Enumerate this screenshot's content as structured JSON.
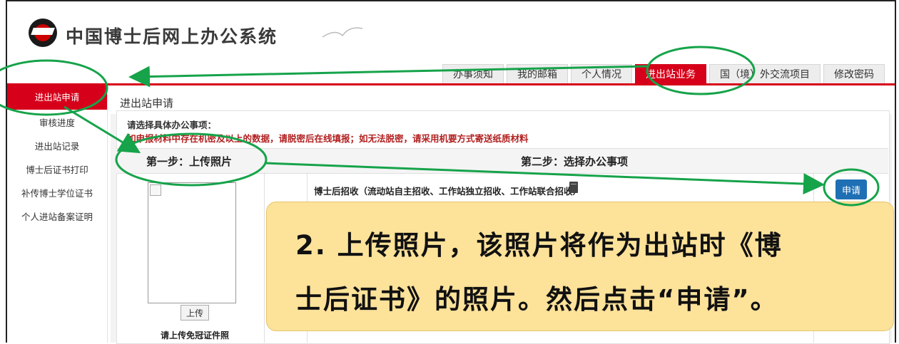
{
  "header": {
    "site_title": "中国博士后网上办公系统"
  },
  "tabs": [
    {
      "label": "办事须知"
    },
    {
      "label": "我的邮箱"
    },
    {
      "label": "个人情况"
    },
    {
      "label": "进出站业务",
      "active": true
    },
    {
      "label": "国（境）外交流项目"
    },
    {
      "label": "修改密码"
    }
  ],
  "sidebar": {
    "items": [
      {
        "label": "进出站申请",
        "active": true
      },
      {
        "label": "审核进度"
      },
      {
        "label": "进出站记录"
      },
      {
        "label": "博士后证书打印"
      },
      {
        "label": "补传博士学位证书"
      },
      {
        "label": "个人进站备案证明"
      }
    ]
  },
  "main": {
    "page_title": "进出站申请",
    "prompt": "请选择具体办公事项：",
    "warning": "如申报材料中存在机密及以上的数据，请脱密后在线填报；如无法脱密，请采用机要方式寄送纸质材料",
    "step1": "第一步：上传照片",
    "step2": "第二步：选择办公事项",
    "upload_button": "上传",
    "photo_hint": "请上传免冠证件照",
    "item_label": "博士后招收（流动站自主招收、工作站独立招收、工作站联合招收）",
    "apply_button": "申请"
  },
  "annotation": {
    "line1": "2. 上传照片，该照片将作为出站时《博",
    "line2": "士后证书》的照片。然后点击“申请”。"
  },
  "colors": {
    "brand_red": "#d7001a",
    "annotation_green": "#16a34a",
    "apply_blue": "#1f6fb5",
    "note_bg": "#fde29a"
  }
}
